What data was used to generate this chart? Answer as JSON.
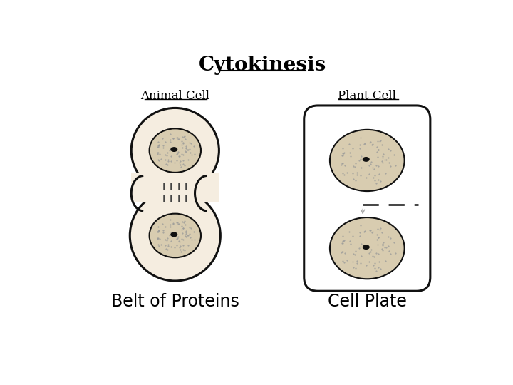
{
  "title": "Cytokinesis",
  "title_fontsize": 20,
  "bg_color": "#ffffff",
  "animal_label": "Animal Cell",
  "plant_label": "Plant Cell",
  "belt_label": "Belt of Proteins",
  "plate_label": "Cell Plate",
  "label_fontsize": 12,
  "sublabel_fontsize": 17,
  "nucleus_fill": "#d8ccb0",
  "nucleolus_color": "#111111",
  "cell_outline_color": "#111111",
  "cell_fill": "#f5ede0",
  "dashed_color": "#333333",
  "arrow_color": "#888888"
}
